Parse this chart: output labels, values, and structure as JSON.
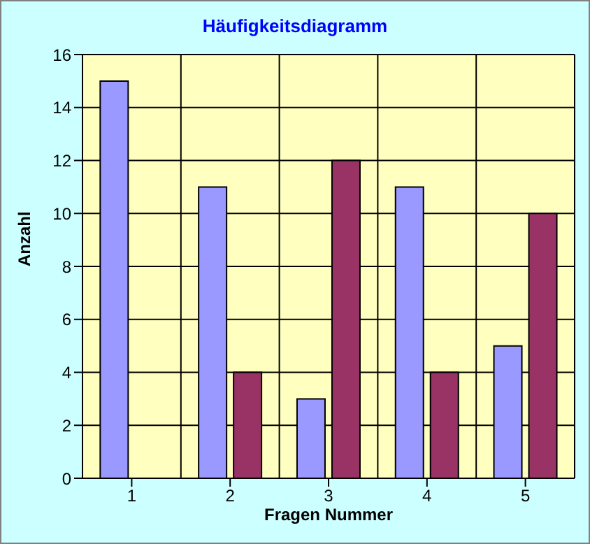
{
  "chart_data": {
    "type": "bar",
    "title": "Häufigkeitsdiagramm",
    "xlabel": "Fragen Nummer",
    "ylabel": "Anzahl",
    "categories": [
      "1",
      "2",
      "3",
      "4",
      "5"
    ],
    "series": [
      {
        "color": "#9999ff",
        "values": [
          15,
          11,
          3,
          11,
          5
        ]
      },
      {
        "color": "#993366",
        "values": [
          null,
          4,
          12,
          4,
          10
        ]
      }
    ],
    "ylim": [
      0,
      16
    ],
    "yticks": [
      0,
      2,
      4,
      6,
      8,
      10,
      12,
      14,
      16
    ],
    "grid": true,
    "legend": false
  }
}
